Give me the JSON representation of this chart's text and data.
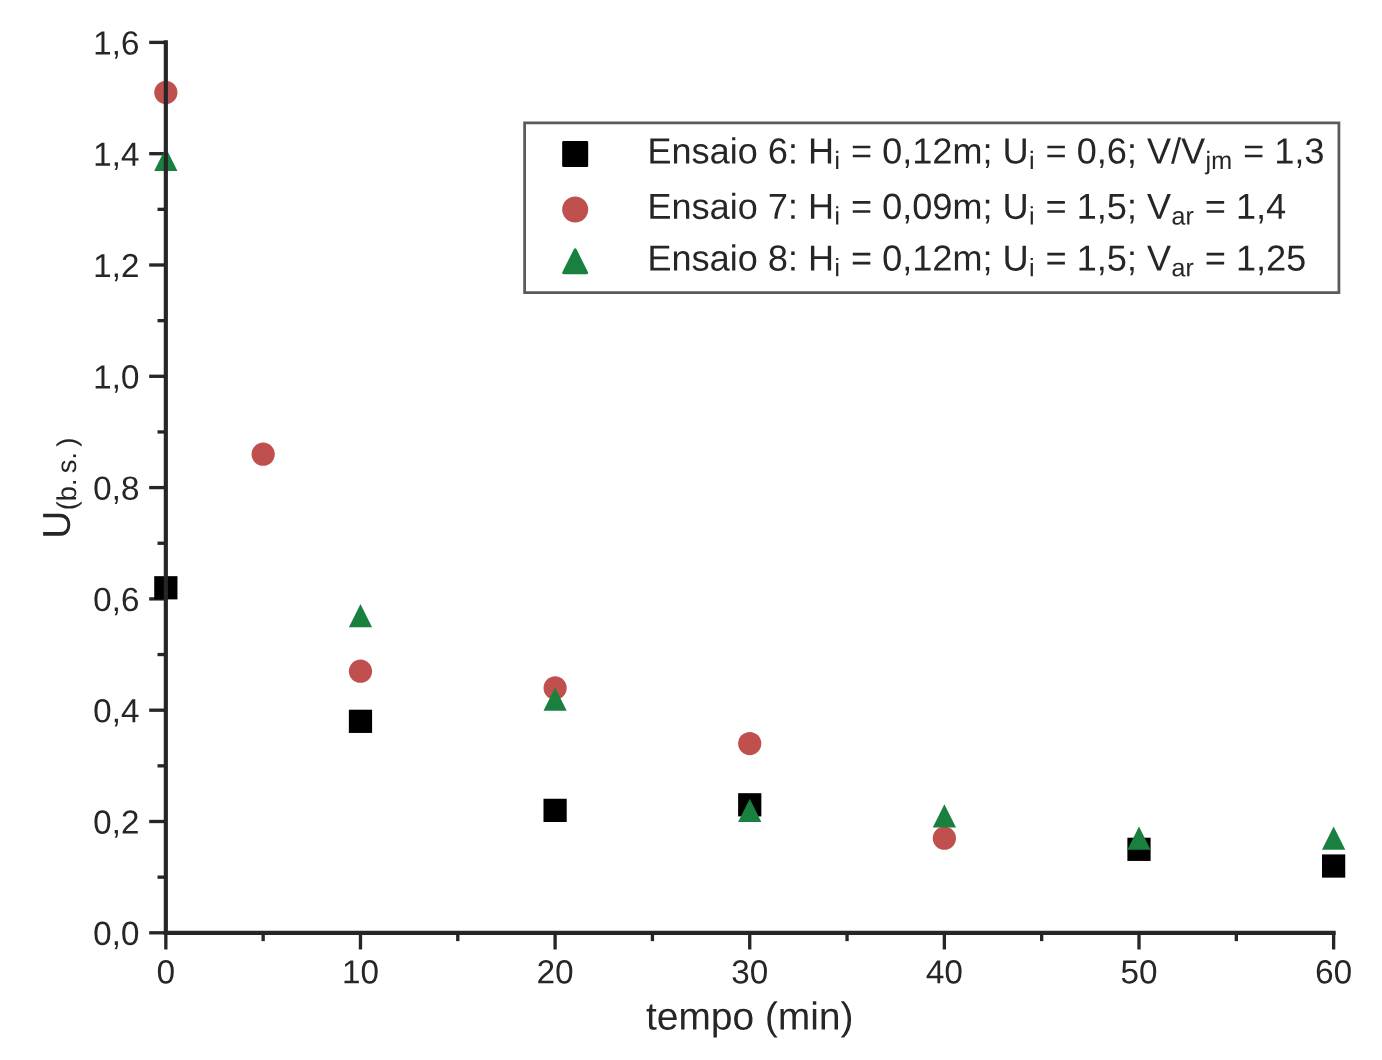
{
  "chart_data": {
    "type": "scatter",
    "xlabel": "tempo (min)",
    "ylabel": "U$_{(b.s.)}$",
    "xlim": [
      0,
      60
    ],
    "xticks": [
      0,
      10,
      20,
      30,
      40,
      50,
      60
    ],
    "ylim": [
      0,
      1.6
    ],
    "yticks": [
      {
        "value": 0,
        "label": "0,0"
      },
      {
        "value": 0.2,
        "label": "0,2"
      },
      {
        "value": 0.4,
        "label": "0,4"
      },
      {
        "value": 0.6,
        "label": "0,6"
      },
      {
        "value": 0.8,
        "label": "0,8"
      },
      {
        "value": 1.0,
        "label": "1,0"
      },
      {
        "value": 1.2,
        "label": "1,2"
      },
      {
        "value": 1.4,
        "label": "1,4"
      },
      {
        "value": 1.6,
        "label": "1,6"
      }
    ],
    "grid": false,
    "legend": "top right",
    "series": [
      {
        "name": "Ensaio 6: H$_{i}$ = 0,12m; U$_{i}$ = 0,6; V/V$_{jm}$ = 1,3",
        "color": "#000000",
        "marker": "square",
        "x": [
          0,
          10,
          20,
          30,
          50,
          60
        ],
        "values": [
          0.62,
          0.38,
          0.22,
          0.23,
          0.15,
          0.12
        ]
      },
      {
        "name": "Ensaio 7: H$_{i}$ = 0,09m; U$_{i}$ = 1,5; V$_{ar}$ = 1,4",
        "color": "#c0504d",
        "marker": "circle",
        "x": [
          0,
          5,
          10,
          20,
          30,
          40
        ],
        "values": [
          1.51,
          0.86,
          0.47,
          0.44,
          0.34,
          0.17
        ]
      },
      {
        "name": "Ensaio 8: H$_{i}$ = 0,12m; U$_{i}$ = 1,5; V$_{ar}$ = 1,25",
        "color": "#1a8040",
        "marker": "triangle",
        "x": [
          0,
          10,
          20,
          30,
          40,
          50,
          60
        ],
        "values": [
          1.39,
          0.57,
          0.42,
          0.22,
          0.21,
          0.17,
          0.17
        ]
      }
    ]
  }
}
